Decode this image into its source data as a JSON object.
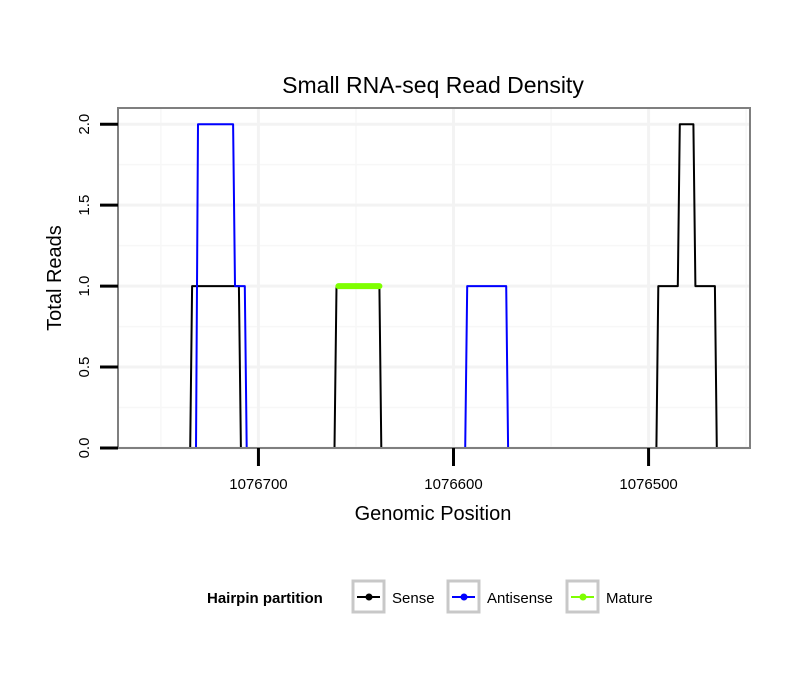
{
  "chart_data": {
    "type": "line",
    "title": "Small RNA-seq Read Density",
    "xlabel": "Genomic Position",
    "ylabel": "Total Reads",
    "x_reversed": true,
    "xlim": [
      1076772,
      1076448
    ],
    "ylim": [
      0,
      2.1
    ],
    "xticks": [
      1076700,
      1076600,
      1076500
    ],
    "xtick_labels": [
      "1076700",
      "1076600",
      "1076500"
    ],
    "yticks": [
      0,
      0.5,
      1,
      1.5,
      2
    ],
    "ytick_labels": [
      "0.0",
      "0.5",
      "1.0",
      "1.5",
      "2.0"
    ],
    "legend": {
      "title": "Hairpin partition",
      "position": "bottom",
      "entries": [
        {
          "name": "Sense",
          "color": "#000000"
        },
        {
          "name": "Antisense",
          "color": "#0000ff"
        },
        {
          "name": "Mature",
          "color": "#7fff00"
        }
      ]
    },
    "series": [
      {
        "name": "Sense",
        "color": "#000000",
        "x": [
          1076757,
          1076735,
          1076734,
          1076710,
          1076709,
          1076661,
          1076660,
          1076638,
          1076637,
          1076496,
          1076495,
          1076485,
          1076484,
          1076477,
          1076476,
          1076466,
          1076465,
          1076454
        ],
        "y": [
          0,
          0,
          1,
          1,
          0,
          0,
          1,
          1,
          0,
          0,
          1,
          1,
          2,
          2,
          1,
          1,
          0,
          0
        ]
      },
      {
        "name": "Antisense",
        "color": "#0000ff",
        "x": [
          1076757,
          1076732,
          1076731,
          1076713,
          1076712,
          1076707,
          1076706,
          1076594,
          1076593,
          1076573,
          1076572,
          1076454
        ],
        "y": [
          0,
          0,
          2,
          2,
          1,
          1,
          0,
          0,
          1,
          1,
          0,
          0
        ]
      },
      {
        "name": "Mature",
        "color": "#7fff00",
        "x": [
          1076659,
          1076638
        ],
        "y": [
          1,
          1
        ]
      }
    ]
  }
}
